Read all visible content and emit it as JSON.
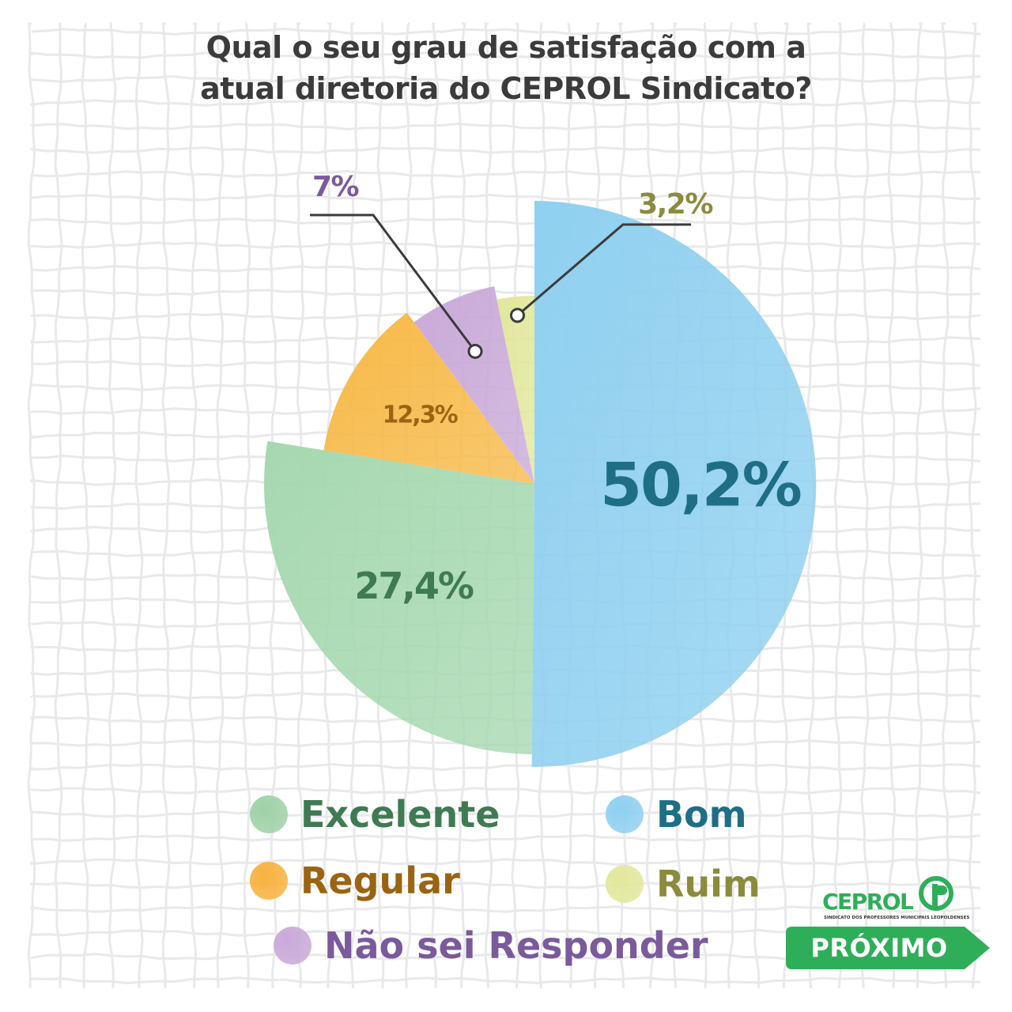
{
  "title_lines": [
    "Qual o seu grau de satisfação com a",
    "atual diretoria do CEPROL Sindicato?"
  ],
  "chart_data": {
    "type": "pie",
    "unit": "%",
    "slices": [
      {
        "label": "Bom",
        "value": 50.2,
        "display": "50,2%",
        "color": "#8fd0f0",
        "text_color": "#1e6e86"
      },
      {
        "label": "Excelente",
        "value": 27.4,
        "display": "27,4%",
        "color": "#a6d8b0",
        "text_color": "#3f7a52"
      },
      {
        "label": "Regular",
        "value": 12.3,
        "display": "12,3%",
        "color": "#f7b947",
        "text_color": "#9a6412"
      },
      {
        "label": "Não sei Responder",
        "value": 7.0,
        "display": "7%",
        "color": "#c9a9d8",
        "text_color": "#7b5a9c"
      },
      {
        "label": "Ruim",
        "value": 3.2,
        "display": "3,2%",
        "color": "#e2e79c",
        "text_color": "#8a8c3c"
      }
    ],
    "legend": [
      {
        "label": "Excelente",
        "color": "#9fd1a8",
        "text_color": "#3f7a52"
      },
      {
        "label": "Bom",
        "color": "#8fd0f0",
        "text_color": "#1e6e86"
      },
      {
        "label": "Regular",
        "color": "#f7b240",
        "text_color": "#9a6412"
      },
      {
        "label": "Ruim",
        "color": "#e2e79c",
        "text_color": "#8a8c3c"
      },
      {
        "label": "Não sei Responder",
        "color": "#c9a9d8",
        "text_color": "#7b5a9c"
      }
    ]
  },
  "logo": {
    "name": "CEPROL",
    "tagline": "SINDICATO DOS PROFESSORES MUNICIPAIS LEOPOLDENSES",
    "color": "#2fae5a"
  },
  "next_button": {
    "label": "PRÓXIMO",
    "color": "#2fae5a"
  }
}
